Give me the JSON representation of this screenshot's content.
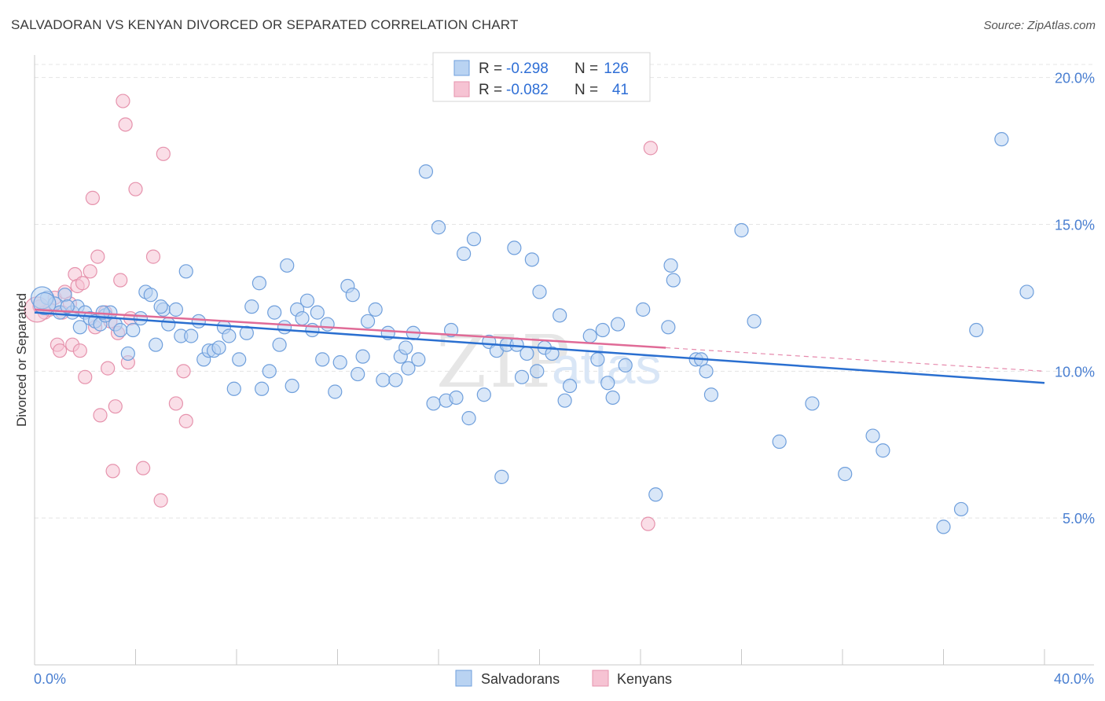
{
  "title": "SALVADORAN VS KENYAN DIVORCED OR SEPARATED CORRELATION CHART",
  "source": "Source: ZipAtlas.com",
  "watermark": {
    "zip": "ZIP",
    "atlas": "atlas"
  },
  "legend": {
    "r_label": "R =",
    "n_label": "N =",
    "rows": [
      {
        "r": "-0.298",
        "n": "126"
      },
      {
        "r": "-0.082",
        "n": "41"
      }
    ]
  },
  "bottom_legend": [
    "Salvadorans",
    "Kenyans"
  ],
  "colors": {
    "salvadorans_fill": "#b9d3f2",
    "salvadorans_stroke": "#6f9fdc",
    "salvadorans_line": "#2a6fd0",
    "kenyans_fill": "#f6c3d3",
    "kenyans_stroke": "#e693ad",
    "kenyans_line": "#e06b97",
    "tick": "#4a7fd1"
  },
  "chart_data": {
    "type": "scatter",
    "title": "SALVADORAN VS KENYAN DIVORCED OR SEPARATED CORRELATION CHART",
    "xlabel": "",
    "ylabel": "Divorced or Separated",
    "xlim": [
      0,
      40
    ],
    "ylim": [
      0,
      20.5
    ],
    "x_tick_labels": [
      "0.0%",
      "40.0%"
    ],
    "y_ticks": [
      5,
      10,
      15,
      20
    ],
    "y_tick_labels": [
      "5.0%",
      "10.0%",
      "15.0%",
      "20.0%"
    ],
    "grid": true,
    "legend_position": "top-center",
    "series": [
      {
        "name": "Salvadorans",
        "trend": {
          "x0": 0,
          "y0": 12.0,
          "x1": 40,
          "y1": 9.6
        },
        "points": [
          [
            0.5,
            12.5
          ],
          [
            0.8,
            12.3
          ],
          [
            1.0,
            12.0
          ],
          [
            1.2,
            12.6
          ],
          [
            1.5,
            12.0
          ],
          [
            1.7,
            12.2
          ],
          [
            1.8,
            11.5
          ],
          [
            2.0,
            12.0
          ],
          [
            2.2,
            11.8
          ],
          [
            2.4,
            11.7
          ],
          [
            2.6,
            11.6
          ],
          [
            2.8,
            11.9
          ],
          [
            3.0,
            12.0
          ],
          [
            3.2,
            11.6
          ],
          [
            3.4,
            11.4
          ],
          [
            3.7,
            10.6
          ],
          [
            3.9,
            11.4
          ],
          [
            4.2,
            11.8
          ],
          [
            4.4,
            12.7
          ],
          [
            4.6,
            12.6
          ],
          [
            4.8,
            10.9
          ],
          [
            5.1,
            12.1
          ],
          [
            5.3,
            11.6
          ],
          [
            5.6,
            12.1
          ],
          [
            5.8,
            11.2
          ],
          [
            6.0,
            13.4
          ],
          [
            6.2,
            11.2
          ],
          [
            6.5,
            11.7
          ],
          [
            6.7,
            10.4
          ],
          [
            6.9,
            10.7
          ],
          [
            7.1,
            10.7
          ],
          [
            7.3,
            10.8
          ],
          [
            7.5,
            11.5
          ],
          [
            7.7,
            11.2
          ],
          [
            7.9,
            9.4
          ],
          [
            8.1,
            10.4
          ],
          [
            8.4,
            11.3
          ],
          [
            8.6,
            12.2
          ],
          [
            8.9,
            13.0
          ],
          [
            9.0,
            9.4
          ],
          [
            9.3,
            10.0
          ],
          [
            9.5,
            12.0
          ],
          [
            9.7,
            10.9
          ],
          [
            10.0,
            13.6
          ],
          [
            10.2,
            9.5
          ],
          [
            10.4,
            12.1
          ],
          [
            10.6,
            11.8
          ],
          [
            10.8,
            12.4
          ],
          [
            11.0,
            11.4
          ],
          [
            11.2,
            12.0
          ],
          [
            11.4,
            10.4
          ],
          [
            11.6,
            11.6
          ],
          [
            11.9,
            9.3
          ],
          [
            12.1,
            10.3
          ],
          [
            12.4,
            12.9
          ],
          [
            12.6,
            12.6
          ],
          [
            12.8,
            9.9
          ],
          [
            13.0,
            10.5
          ],
          [
            13.2,
            11.7
          ],
          [
            13.5,
            12.1
          ],
          [
            13.8,
            9.7
          ],
          [
            14.0,
            11.3
          ],
          [
            14.3,
            9.7
          ],
          [
            14.5,
            10.5
          ],
          [
            14.7,
            10.8
          ],
          [
            15.0,
            11.3
          ],
          [
            15.2,
            10.4
          ],
          [
            15.5,
            16.8
          ],
          [
            15.8,
            8.9
          ],
          [
            16.0,
            14.9
          ],
          [
            16.3,
            9.0
          ],
          [
            16.5,
            11.4
          ],
          [
            16.7,
            9.1
          ],
          [
            17.0,
            14.0
          ],
          [
            17.2,
            8.4
          ],
          [
            17.4,
            14.5
          ],
          [
            17.8,
            9.2
          ],
          [
            18.0,
            11.0
          ],
          [
            18.3,
            10.7
          ],
          [
            18.5,
            6.4
          ],
          [
            18.7,
            10.9
          ],
          [
            19.0,
            14.2
          ],
          [
            19.3,
            9.8
          ],
          [
            19.5,
            10.6
          ],
          [
            19.7,
            13.8
          ],
          [
            19.9,
            10.0
          ],
          [
            20.0,
            12.7
          ],
          [
            20.2,
            10.8
          ],
          [
            20.5,
            10.6
          ],
          [
            20.8,
            11.9
          ],
          [
            21.0,
            9.0
          ],
          [
            21.2,
            9.5
          ],
          [
            22.0,
            11.2
          ],
          [
            22.3,
            10.4
          ],
          [
            22.5,
            11.4
          ],
          [
            22.7,
            9.6
          ],
          [
            22.9,
            9.1
          ],
          [
            23.1,
            11.6
          ],
          [
            23.4,
            10.2
          ],
          [
            24.1,
            12.1
          ],
          [
            24.6,
            5.8
          ],
          [
            25.1,
            11.5
          ],
          [
            25.2,
            13.6
          ],
          [
            25.3,
            13.1
          ],
          [
            26.2,
            10.4
          ],
          [
            26.4,
            10.4
          ],
          [
            26.6,
            10.0
          ],
          [
            26.8,
            9.2
          ],
          [
            28.0,
            14.8
          ],
          [
            28.5,
            11.7
          ],
          [
            29.5,
            7.6
          ],
          [
            30.8,
            8.9
          ],
          [
            32.1,
            6.5
          ],
          [
            33.2,
            7.8
          ],
          [
            33.6,
            7.3
          ],
          [
            36.0,
            4.7
          ],
          [
            36.7,
            5.3
          ],
          [
            37.3,
            11.4
          ],
          [
            38.3,
            17.9
          ],
          [
            39.3,
            12.7
          ],
          [
            1.3,
            12.2
          ],
          [
            2.7,
            12.0
          ],
          [
            5.0,
            12.2
          ],
          [
            9.9,
            11.5
          ],
          [
            14.8,
            10.1
          ],
          [
            19.1,
            10.9
          ]
        ],
        "large_points": [
          [
            0.3,
            12.5
          ],
          [
            0.4,
            12.3
          ]
        ]
      },
      {
        "name": "Kenyans",
        "trend": {
          "x0": 0,
          "y0": 12.1,
          "x1": 25,
          "y1": 10.8
        },
        "trend_dashed_to": {
          "x": 40,
          "y": 10.0
        },
        "points": [
          [
            0.2,
            12.2
          ],
          [
            0.4,
            12.0
          ],
          [
            0.6,
            12.1
          ],
          [
            0.8,
            12.5
          ],
          [
            0.9,
            10.9
          ],
          [
            1.0,
            10.7
          ],
          [
            1.1,
            12.0
          ],
          [
            1.2,
            12.7
          ],
          [
            1.4,
            12.3
          ],
          [
            1.5,
            10.9
          ],
          [
            1.6,
            13.3
          ],
          [
            1.7,
            12.9
          ],
          [
            1.8,
            10.7
          ],
          [
            1.9,
            13.0
          ],
          [
            2.0,
            9.8
          ],
          [
            2.2,
            13.4
          ],
          [
            2.3,
            15.9
          ],
          [
            2.4,
            11.5
          ],
          [
            2.5,
            13.9
          ],
          [
            2.6,
            8.5
          ],
          [
            2.8,
            12.0
          ],
          [
            2.9,
            10.1
          ],
          [
            3.0,
            11.7
          ],
          [
            3.1,
            6.6
          ],
          [
            3.2,
            8.8
          ],
          [
            3.3,
            11.3
          ],
          [
            3.4,
            13.1
          ],
          [
            3.5,
            19.2
          ],
          [
            3.6,
            18.4
          ],
          [
            3.7,
            10.3
          ],
          [
            3.8,
            11.8
          ],
          [
            4.0,
            16.2
          ],
          [
            4.3,
            6.7
          ],
          [
            4.7,
            13.9
          ],
          [
            5.0,
            5.6
          ],
          [
            5.1,
            17.4
          ],
          [
            5.6,
            8.9
          ],
          [
            5.9,
            10.0
          ],
          [
            6.0,
            8.3
          ],
          [
            24.3,
            4.8
          ],
          [
            24.4,
            17.6
          ]
        ],
        "large_points": [
          [
            0.1,
            12.1
          ]
        ]
      }
    ]
  }
}
